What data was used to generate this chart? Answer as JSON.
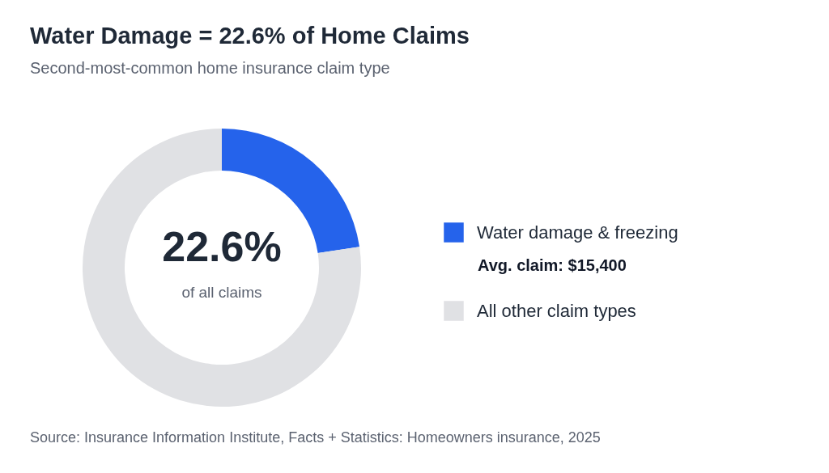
{
  "chart_data": {
    "type": "donut",
    "title": "Water Damage = 22.6% of Home Claims",
    "subtitle": "Second-most-common home insurance claim type",
    "categories": [
      "Water damage & freezing",
      "All other claim types"
    ],
    "values": [
      22.6,
      77.4
    ],
    "colors": [
      "#2563eb",
      "#e0e1e4"
    ],
    "legend": "right",
    "annotations": [
      "22.6%",
      "of all claims",
      "Avg. claim: $15,400",
      "Source: Insurance Information Institute, Facts + Statistics: Homeowners insurance, 2025"
    ]
  }
}
